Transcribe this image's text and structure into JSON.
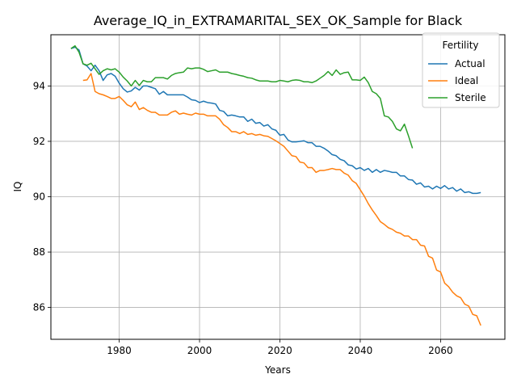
{
  "chart_data": {
    "type": "line",
    "title": "Average_IQ_in_EXTRAMARITAL_SEX_OK_Sample for Black",
    "xlabel": "Years",
    "ylabel": "IQ",
    "xlim": [
      1963,
      2076
    ],
    "ylim": [
      84.85,
      95.85
    ],
    "x_ticks": [
      1980,
      2000,
      2020,
      2040,
      2060
    ],
    "y_ticks": [
      86,
      88,
      90,
      92,
      94
    ],
    "grid": true,
    "legend": {
      "title": "Fertility",
      "position": "top-right"
    },
    "series": [
      {
        "name": "Actual",
        "color": "#1f77b4",
        "points": [
          [
            1968,
            95.35
          ],
          [
            1969,
            95.4
          ],
          [
            1970,
            95.3
          ],
          [
            1971,
            94.8
          ],
          [
            1972,
            94.72
          ],
          [
            1973,
            94.55
          ],
          [
            1974,
            94.75
          ],
          [
            1975,
            94.55
          ],
          [
            1976,
            94.2
          ],
          [
            1977,
            94.4
          ],
          [
            1978,
            94.45
          ],
          [
            1979,
            94.35
          ],
          [
            1980,
            94.1
          ],
          [
            1981,
            93.9
          ],
          [
            1982,
            93.78
          ],
          [
            1983,
            93.82
          ],
          [
            1984,
            93.95
          ],
          [
            1985,
            93.85
          ],
          [
            1986,
            94.0
          ],
          [
            1987,
            94.0
          ],
          [
            1988,
            93.95
          ],
          [
            1989,
            93.9
          ],
          [
            1990,
            93.7
          ],
          [
            1991,
            93.8
          ],
          [
            1992,
            93.68
          ],
          [
            1993,
            93.68
          ],
          [
            1994,
            93.68
          ],
          [
            1995,
            93.68
          ],
          [
            1996,
            93.68
          ],
          [
            1997,
            93.6
          ],
          [
            1998,
            93.5
          ],
          [
            1999,
            93.48
          ],
          [
            2000,
            93.4
          ],
          [
            2001,
            93.45
          ],
          [
            2002,
            93.4
          ],
          [
            2003,
            93.38
          ],
          [
            2004,
            93.35
          ],
          [
            2005,
            93.12
          ],
          [
            2006,
            93.08
          ],
          [
            2007,
            92.92
          ],
          [
            2008,
            92.95
          ],
          [
            2009,
            92.92
          ],
          [
            2010,
            92.88
          ],
          [
            2011,
            92.88
          ],
          [
            2012,
            92.72
          ],
          [
            2013,
            92.8
          ],
          [
            2014,
            92.65
          ],
          [
            2015,
            92.68
          ],
          [
            2016,
            92.55
          ],
          [
            2017,
            92.6
          ],
          [
            2018,
            92.45
          ],
          [
            2019,
            92.4
          ],
          [
            2020,
            92.22
          ],
          [
            2021,
            92.25
          ],
          [
            2022,
            92.05
          ],
          [
            2023,
            91.98
          ],
          [
            2024,
            91.98
          ],
          [
            2025,
            92.0
          ],
          [
            2026,
            92.02
          ],
          [
            2027,
            91.95
          ],
          [
            2028,
            91.95
          ],
          [
            2029,
            91.82
          ],
          [
            2030,
            91.82
          ],
          [
            2031,
            91.75
          ],
          [
            2032,
            91.65
          ],
          [
            2033,
            91.52
          ],
          [
            2034,
            91.48
          ],
          [
            2035,
            91.35
          ],
          [
            2036,
            91.3
          ],
          [
            2037,
            91.15
          ],
          [
            2038,
            91.12
          ],
          [
            2039,
            91.0
          ],
          [
            2040,
            91.05
          ],
          [
            2041,
            90.95
          ],
          [
            2042,
            91.02
          ],
          [
            2043,
            90.88
          ],
          [
            2044,
            90.98
          ],
          [
            2045,
            90.88
          ],
          [
            2046,
            90.95
          ],
          [
            2047,
            90.92
          ],
          [
            2048,
            90.88
          ],
          [
            2049,
            90.88
          ],
          [
            2050,
            90.75
          ],
          [
            2051,
            90.75
          ],
          [
            2052,
            90.62
          ],
          [
            2053,
            90.6
          ],
          [
            2054,
            90.45
          ],
          [
            2055,
            90.5
          ],
          [
            2056,
            90.35
          ],
          [
            2057,
            90.38
          ],
          [
            2058,
            90.28
          ],
          [
            2059,
            90.38
          ],
          [
            2060,
            90.3
          ],
          [
            2061,
            90.4
          ],
          [
            2062,
            90.28
          ],
          [
            2063,
            90.33
          ],
          [
            2064,
            90.2
          ],
          [
            2065,
            90.28
          ],
          [
            2066,
            90.15
          ],
          [
            2067,
            90.18
          ],
          [
            2068,
            90.12
          ],
          [
            2069,
            90.12
          ],
          [
            2070,
            90.15
          ]
        ]
      },
      {
        "name": "Ideal",
        "color": "#ff7f0e",
        "points": [
          [
            1971,
            94.2
          ],
          [
            1972,
            94.22
          ],
          [
            1973,
            94.45
          ],
          [
            1974,
            93.8
          ],
          [
            1975,
            93.72
          ],
          [
            1976,
            93.68
          ],
          [
            1977,
            93.62
          ],
          [
            1978,
            93.55
          ],
          [
            1979,
            93.55
          ],
          [
            1980,
            93.62
          ],
          [
            1981,
            93.48
          ],
          [
            1982,
            93.32
          ],
          [
            1983,
            93.25
          ],
          [
            1984,
            93.42
          ],
          [
            1985,
            93.15
          ],
          [
            1986,
            93.22
          ],
          [
            1987,
            93.12
          ],
          [
            1988,
            93.05
          ],
          [
            1989,
            93.05
          ],
          [
            1990,
            92.95
          ],
          [
            1991,
            92.95
          ],
          [
            1992,
            92.95
          ],
          [
            1993,
            93.05
          ],
          [
            1994,
            93.1
          ],
          [
            1995,
            92.98
          ],
          [
            1996,
            93.02
          ],
          [
            1997,
            92.98
          ],
          [
            1998,
            92.95
          ],
          [
            1999,
            93.02
          ],
          [
            2000,
            92.98
          ],
          [
            2001,
            92.98
          ],
          [
            2002,
            92.92
          ],
          [
            2003,
            92.92
          ],
          [
            2004,
            92.92
          ],
          [
            2005,
            92.8
          ],
          [
            2006,
            92.6
          ],
          [
            2007,
            92.5
          ],
          [
            2008,
            92.35
          ],
          [
            2009,
            92.35
          ],
          [
            2010,
            92.28
          ],
          [
            2011,
            92.35
          ],
          [
            2012,
            92.25
          ],
          [
            2013,
            92.28
          ],
          [
            2014,
            92.22
          ],
          [
            2015,
            92.25
          ],
          [
            2016,
            92.2
          ],
          [
            2017,
            92.18
          ],
          [
            2018,
            92.1
          ],
          [
            2019,
            92.02
          ],
          [
            2020,
            91.92
          ],
          [
            2021,
            91.82
          ],
          [
            2022,
            91.65
          ],
          [
            2023,
            91.48
          ],
          [
            2024,
            91.45
          ],
          [
            2025,
            91.25
          ],
          [
            2026,
            91.22
          ],
          [
            2027,
            91.05
          ],
          [
            2028,
            91.05
          ],
          [
            2029,
            90.88
          ],
          [
            2030,
            90.95
          ],
          [
            2031,
            90.95
          ],
          [
            2032,
            90.98
          ],
          [
            2033,
            91.02
          ],
          [
            2034,
            90.98
          ],
          [
            2035,
            90.98
          ],
          [
            2036,
            90.85
          ],
          [
            2037,
            90.78
          ],
          [
            2038,
            90.58
          ],
          [
            2039,
            90.48
          ],
          [
            2040,
            90.25
          ],
          [
            2041,
            90.02
          ],
          [
            2042,
            89.75
          ],
          [
            2043,
            89.52
          ],
          [
            2044,
            89.32
          ],
          [
            2045,
            89.1
          ],
          [
            2046,
            89.0
          ],
          [
            2047,
            88.88
          ],
          [
            2048,
            88.82
          ],
          [
            2049,
            88.72
          ],
          [
            2050,
            88.68
          ],
          [
            2051,
            88.58
          ],
          [
            2052,
            88.58
          ],
          [
            2053,
            88.45
          ],
          [
            2054,
            88.45
          ],
          [
            2055,
            88.25
          ],
          [
            2056,
            88.22
          ],
          [
            2057,
            87.85
          ],
          [
            2058,
            87.78
          ],
          [
            2059,
            87.35
          ],
          [
            2060,
            87.28
          ],
          [
            2061,
            86.88
          ],
          [
            2062,
            86.75
          ],
          [
            2063,
            86.55
          ],
          [
            2064,
            86.42
          ],
          [
            2065,
            86.35
          ],
          [
            2066,
            86.12
          ],
          [
            2067,
            86.05
          ],
          [
            2068,
            85.75
          ],
          [
            2069,
            85.7
          ],
          [
            2070,
            85.35
          ]
        ]
      },
      {
        "name": "Sterile",
        "color": "#2ca02c",
        "points": [
          [
            1968,
            95.35
          ],
          [
            1969,
            95.45
          ],
          [
            1970,
            95.22
          ],
          [
            1971,
            94.8
          ],
          [
            1972,
            94.75
          ],
          [
            1973,
            94.82
          ],
          [
            1974,
            94.62
          ],
          [
            1975,
            94.42
          ],
          [
            1976,
            94.55
          ],
          [
            1977,
            94.62
          ],
          [
            1978,
            94.58
          ],
          [
            1979,
            94.62
          ],
          [
            1980,
            94.5
          ],
          [
            1981,
            94.32
          ],
          [
            1982,
            94.18
          ],
          [
            1983,
            94.0
          ],
          [
            1984,
            94.2
          ],
          [
            1985,
            94.02
          ],
          [
            1986,
            94.2
          ],
          [
            1987,
            94.15
          ],
          [
            1988,
            94.15
          ],
          [
            1989,
            94.3
          ],
          [
            1990,
            94.3
          ],
          [
            1991,
            94.3
          ],
          [
            1992,
            94.25
          ],
          [
            1993,
            94.38
          ],
          [
            1994,
            94.45
          ],
          [
            1995,
            94.48
          ],
          [
            1996,
            94.5
          ],
          [
            1997,
            94.65
          ],
          [
            1998,
            94.62
          ],
          [
            1999,
            94.65
          ],
          [
            2000,
            94.65
          ],
          [
            2001,
            94.6
          ],
          [
            2002,
            94.52
          ],
          [
            2003,
            94.55
          ],
          [
            2004,
            94.58
          ],
          [
            2005,
            94.5
          ],
          [
            2006,
            94.5
          ],
          [
            2007,
            94.5
          ],
          [
            2008,
            94.45
          ],
          [
            2009,
            94.42
          ],
          [
            2010,
            94.38
          ],
          [
            2011,
            94.35
          ],
          [
            2012,
            94.3
          ],
          [
            2013,
            94.28
          ],
          [
            2014,
            94.22
          ],
          [
            2015,
            94.18
          ],
          [
            2016,
            94.18
          ],
          [
            2017,
            94.18
          ],
          [
            2018,
            94.15
          ],
          [
            2019,
            94.15
          ],
          [
            2020,
            94.2
          ],
          [
            2021,
            94.18
          ],
          [
            2022,
            94.15
          ],
          [
            2023,
            94.2
          ],
          [
            2024,
            94.22
          ],
          [
            2025,
            94.2
          ],
          [
            2026,
            94.15
          ],
          [
            2027,
            94.15
          ],
          [
            2028,
            94.12
          ],
          [
            2029,
            94.18
          ],
          [
            2030,
            94.28
          ],
          [
            2031,
            94.38
          ],
          [
            2032,
            94.52
          ],
          [
            2033,
            94.38
          ],
          [
            2034,
            94.58
          ],
          [
            2035,
            94.42
          ],
          [
            2036,
            94.48
          ],
          [
            2037,
            94.5
          ],
          [
            2038,
            94.22
          ],
          [
            2039,
            94.22
          ],
          [
            2040,
            94.2
          ],
          [
            2041,
            94.32
          ],
          [
            2042,
            94.12
          ],
          [
            2043,
            93.8
          ],
          [
            2044,
            93.72
          ],
          [
            2045,
            93.55
          ],
          [
            2046,
            92.92
          ],
          [
            2047,
            92.88
          ],
          [
            2048,
            92.72
          ],
          [
            2049,
            92.45
          ],
          [
            2050,
            92.38
          ],
          [
            2051,
            92.62
          ],
          [
            2052,
            92.2
          ],
          [
            2053,
            91.75
          ]
        ]
      }
    ]
  }
}
